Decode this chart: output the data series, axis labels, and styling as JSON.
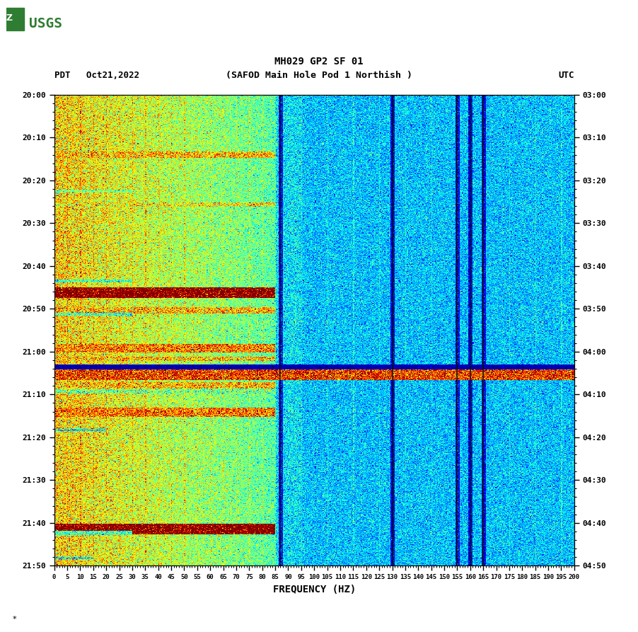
{
  "title_line1": "MH029 GP2 SF 01",
  "title_line2": "(SAFOD Main Hole Pod 1 Northish )",
  "pdt_label": "PDT   Oct21,2022",
  "utc_label": "UTC",
  "xlabel": "FREQUENCY (HZ)",
  "freq_ticks": [
    0,
    5,
    10,
    15,
    20,
    25,
    30,
    35,
    40,
    45,
    50,
    55,
    60,
    65,
    70,
    75,
    80,
    85,
    90,
    95,
    100,
    105,
    110,
    115,
    120,
    125,
    130,
    135,
    140,
    145,
    150,
    155,
    160,
    165,
    170,
    175,
    180,
    185,
    190,
    195,
    200
  ],
  "time_ticks_pdt": [
    "20:00",
    "20:10",
    "20:20",
    "20:30",
    "20:40",
    "20:50",
    "21:00",
    "21:10",
    "21:20",
    "21:30",
    "21:40",
    "21:50"
  ],
  "time_ticks_utc": [
    "03:00",
    "03:10",
    "03:20",
    "03:30",
    "03:40",
    "03:50",
    "04:00",
    "04:10",
    "04:20",
    "04:30",
    "04:40",
    "04:50"
  ],
  "background_color": "#ffffff",
  "usgs_logo_color": "#2e7d32",
  "seed": 42,
  "n_time": 660,
  "n_freq": 600,
  "freq_max": 200,
  "time_total_min": 110,
  "vmin": 0.0,
  "vmax": 7.0,
  "base_level_low_freq": 3.2,
  "base_level_high_freq": 2.2,
  "freq_transition": 85,
  "vertical_dark_lines": [
    87,
    130,
    155,
    160,
    165
  ],
  "vertical_bright_lines_low": [
    5,
    10,
    15,
    20,
    25,
    30,
    35,
    40,
    45,
    50,
    55,
    60,
    65,
    70,
    75,
    80,
    85
  ],
  "vertical_bright_lines_high": [
    95,
    105,
    115,
    125,
    135,
    145,
    155,
    160,
    165,
    175,
    185,
    195
  ],
  "events": [
    {
      "t_hr": 20.22,
      "dur_min": 1.5,
      "amp": 5.0,
      "max_hz": 85,
      "type": "bright"
    },
    {
      "t_hr": 20.37,
      "dur_min": 0.8,
      "amp": 3.5,
      "max_hz": 30,
      "type": "medium"
    },
    {
      "t_hr": 20.42,
      "dur_min": 1.0,
      "amp": 4.5,
      "max_hz": 85,
      "type": "bright"
    },
    {
      "t_hr": 20.72,
      "dur_min": 0.8,
      "amp": 3.0,
      "max_hz": 30,
      "type": "medium"
    },
    {
      "t_hr": 20.75,
      "dur_min": 2.5,
      "amp": 7.5,
      "max_hz": 85,
      "type": "red"
    },
    {
      "t_hr": 20.83,
      "dur_min": 1.5,
      "amp": 5.0,
      "max_hz": 85,
      "type": "bright"
    },
    {
      "t_hr": 20.85,
      "dur_min": 0.8,
      "amp": 3.0,
      "max_hz": 30,
      "type": "medium"
    },
    {
      "t_hr": 20.97,
      "dur_min": 2.0,
      "amp": 5.5,
      "max_hz": 85,
      "type": "bright"
    },
    {
      "t_hr": 21.02,
      "dur_min": 1.0,
      "amp": 5.0,
      "max_hz": 85,
      "type": "bright"
    },
    {
      "t_hr": 21.05,
      "dur_min": 1.8,
      "amp": 1.0,
      "max_hz": 200,
      "type": "dark_blue"
    },
    {
      "t_hr": 21.07,
      "dur_min": 2.5,
      "amp": 6.0,
      "max_hz": 200,
      "type": "red_full"
    },
    {
      "t_hr": 21.12,
      "dur_min": 1.5,
      "amp": 5.0,
      "max_hz": 85,
      "type": "bright"
    },
    {
      "t_hr": 21.15,
      "dur_min": 1.0,
      "amp": 3.5,
      "max_hz": 85,
      "type": "bright"
    },
    {
      "t_hr": 21.22,
      "dur_min": 2.0,
      "amp": 5.5,
      "max_hz": 85,
      "type": "bright"
    },
    {
      "t_hr": 21.3,
      "dur_min": 0.5,
      "amp": 2.5,
      "max_hz": 20,
      "type": "medium"
    },
    {
      "t_hr": 21.67,
      "dur_min": 2.5,
      "amp": 7.5,
      "max_hz": 85,
      "type": "red"
    },
    {
      "t_hr": 21.7,
      "dur_min": 1.0,
      "amp": 3.0,
      "max_hz": 30,
      "type": "medium"
    },
    {
      "t_hr": 21.8,
      "dur_min": 0.5,
      "amp": 2.5,
      "max_hz": 15,
      "type": "medium"
    }
  ]
}
